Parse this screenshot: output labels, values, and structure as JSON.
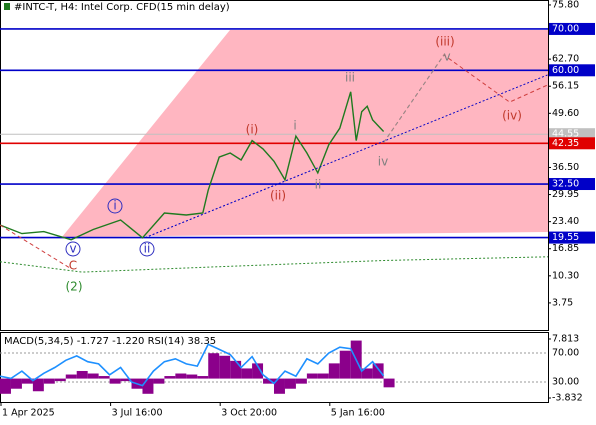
{
  "chart_data": [
    {
      "type": "line",
      "title": "#INTC-T, H4:  Intel Corp. CFD(15 min delay)",
      "xlim": [
        0,
        100
      ],
      "ylim": [
        -2.8,
        77.0
      ],
      "xticks": [
        {
          "value": 0,
          "label": "1 Apr 2025"
        },
        {
          "value": 20,
          "label": "3 Jul 16:00"
        },
        {
          "value": 40,
          "label": "3 Oct 20:00"
        },
        {
          "value": 60,
          "label": "5 Jan 16:00"
        }
      ],
      "yticks": [
        {
          "value": 75.8,
          "label": "75.80"
        },
        {
          "value": 62.7,
          "label": "62.70"
        },
        {
          "value": 56.15,
          "label": "56.15"
        },
        {
          "value": 49.6,
          "label": "49.60"
        },
        {
          "value": 36.5,
          "label": "36.50"
        },
        {
          "value": 29.95,
          "label": "29.95"
        },
        {
          "value": 23.4,
          "label": "23.40"
        },
        {
          "value": 16.85,
          "label": "16.85"
        },
        {
          "value": 10.3,
          "label": "10.30"
        },
        {
          "value": 3.75,
          "label": "3.75"
        }
      ],
      "levels": [
        {
          "value": 70,
          "label": "70.00",
          "color": "#0000c8"
        },
        {
          "value": 60,
          "label": "60.00",
          "color": "#0000c8"
        },
        {
          "value": 44.55,
          "label": "44.55",
          "color": "#c0c0c0"
        },
        {
          "value": 42.35,
          "label": "42.35",
          "color": "#e00000"
        },
        {
          "value": 32.5,
          "label": "32.50",
          "color": "#0000c8"
        },
        {
          "value": 19.55,
          "label": "19.55",
          "color": "#0000c8"
        }
      ],
      "series": [
        {
          "style": "solid",
          "color": "#1f7a1f",
          "x": [
            0,
            4,
            8,
            13,
            17,
            22,
            26,
            30,
            34,
            37,
            38,
            40,
            42,
            44,
            46,
            48,
            50,
            52,
            54,
            56,
            58,
            60,
            62,
            64,
            65,
            66,
            67,
            68,
            70
          ],
          "values": [
            22.6,
            20.5,
            21,
            19,
            21.5,
            23.8,
            19.5,
            25.5,
            25,
            25.5,
            31,
            39,
            40,
            38.3,
            43,
            41,
            38,
            33.5,
            44.1,
            40,
            35.2,
            42,
            46,
            54.8,
            43,
            50,
            51.3,
            48,
            45.2
          ]
        },
        {
          "style": "dotted",
          "color": "#2e8b2e",
          "x": [
            0,
            15,
            40,
            70,
            100
          ],
          "values": [
            13.7,
            11.2,
            12.5,
            14,
            14.9
          ]
        },
        {
          "style": "dotted",
          "color": "#0000c8",
          "x": [
            26.5,
            100
          ],
          "values": [
            19.55,
            58.9
          ]
        },
        {
          "style": "dashed",
          "color": "#d04040",
          "x": [
            70,
            81,
            93,
            100
          ],
          "values": [
            42.5,
            63.7,
            52.3,
            56.5
          ]
        },
        {
          "style": "dashed",
          "color": "#909090",
          "x": [
            70,
            81
          ],
          "values": [
            42.5,
            63.7
          ]
        },
        {
          "style": "dashed",
          "color": "#d04040",
          "x": [
            0,
            13
          ],
          "values": [
            22.6,
            12
          ]
        }
      ],
      "annotations": [
        {
          "text": "(iii)",
          "color": "#c0392b"
        },
        {
          "text": "v",
          "color": "#808080"
        },
        {
          "text": "iii",
          "color": "#808080"
        },
        {
          "text": "i",
          "color": "#808080"
        },
        {
          "text": "(i)",
          "color": "#c0392b"
        },
        {
          "text": "(ii)",
          "color": "#c0392b"
        },
        {
          "text": "ii",
          "color": "#808080"
        },
        {
          "text": "iv",
          "color": "#808080"
        },
        {
          "text": "(iv)",
          "color": "#c0392b"
        },
        {
          "text": "i",
          "color": "#3030c0",
          "circled": true
        },
        {
          "text": "ii",
          "color": "#3030c0",
          "circled": true
        },
        {
          "text": "v",
          "color": "#3030c0",
          "circled": true
        },
        {
          "text": "C",
          "color": "#c0392b"
        },
        {
          "text": "(2)",
          "color": "#2e8b2e"
        }
      ]
    },
    {
      "type": "bar",
      "title": "MACD(5,34,5) -1.727 -1.220 RSI(14) 38.35",
      "xlim": [
        0,
        100
      ],
      "ylim": [
        -4.62,
        9.19
      ],
      "y2lim": [
        2.4,
        99
      ],
      "yticks": [
        7.813,
        -3.832
      ],
      "y2ticks": [
        {
          "value": 70,
          "label": "70.00"
        },
        {
          "value": 30,
          "label": "30.00"
        }
      ],
      "x": [
        0,
        2,
        4,
        6,
        8,
        10,
        12,
        14,
        16,
        18,
        20,
        22,
        24,
        26,
        28,
        30,
        32,
        34,
        36,
        38,
        40,
        42,
        44,
        46,
        48,
        50,
        52,
        54,
        56,
        58,
        60,
        62,
        64,
        66,
        68,
        70
      ],
      "series": [
        {
          "type": "bar",
          "color": "#8b008b",
          "values": [
            -3,
            -2,
            -1,
            -2.5,
            -1,
            -0.5,
            0.8,
            1.5,
            1,
            0.5,
            -1,
            -0.5,
            -2,
            -3,
            -1,
            0.5,
            1,
            0.8,
            0.5,
            5,
            4.5,
            3.5,
            2,
            3,
            -1,
            -3,
            -2,
            -1,
            1,
            1,
            3,
            5.5,
            7.5,
            2,
            3,
            -1.727
          ]
        },
        {
          "type": "line",
          "axis": "y2",
          "color": "#1e90ff",
          "values": [
            38,
            35,
            45,
            32,
            42,
            50,
            60,
            66,
            58,
            55,
            40,
            50,
            30,
            25,
            45,
            58,
            62,
            55,
            52,
            82,
            75,
            68,
            50,
            65,
            40,
            28,
            45,
            38,
            62,
            55,
            70,
            78,
            76,
            45,
            58,
            38.35
          ]
        }
      ]
    }
  ]
}
